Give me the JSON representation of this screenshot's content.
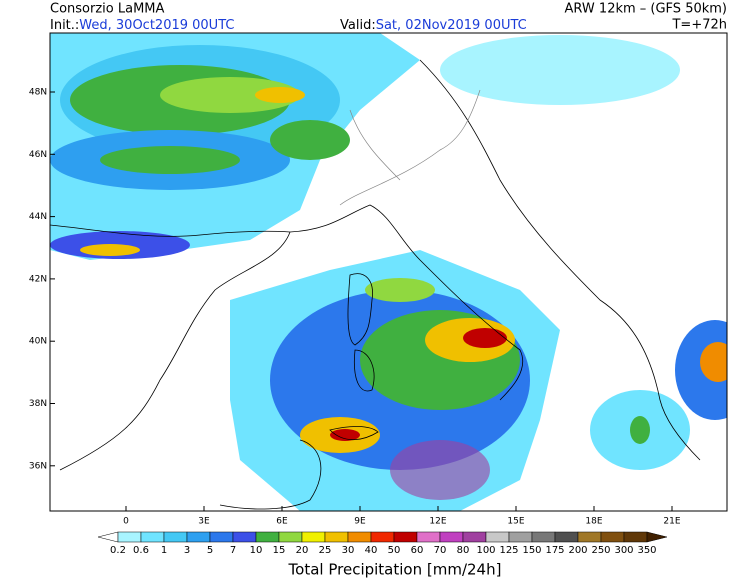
{
  "header": {
    "producer": "Consorzio LaMMA",
    "init_label": "Init.:",
    "init_value": "Wed, 30Oct2019 00UTC",
    "model": "ARW 12km  –  (GFS 50km)",
    "valid_label": "Valid:",
    "valid_value": "Sat, 02Nov2019 00UTC",
    "lead_time": "T=+72h"
  },
  "lat_labels": [
    "48N",
    "46N",
    "44N",
    "42N",
    "40N",
    "38N",
    "36N"
  ],
  "lon_labels": [
    "0",
    "3E",
    "6E",
    "9E",
    "12E",
    "15E",
    "18E",
    "21E"
  ],
  "colorbar": {
    "title": "Total Precipitation [mm/24h]",
    "levels": [
      0.2,
      0.6,
      1,
      3,
      5,
      7,
      10,
      15,
      20,
      25,
      30,
      40,
      50,
      60,
      70,
      80,
      100,
      125,
      150,
      175,
      200,
      250,
      300,
      350
    ],
    "colors": [
      "#ffffff",
      "#a8f4ff",
      "#70e4ff",
      "#44c8f4",
      "#2ea0f0",
      "#2c78ec",
      "#3c50e8",
      "#40b040",
      "#90d840",
      "#f0f000",
      "#f0c000",
      "#f08c00",
      "#f02800",
      "#c00000",
      "#e070c8",
      "#c040c0",
      "#a040a0",
      "#c8c8c8",
      "#a0a0a0",
      "#787878",
      "#505050",
      "#a07828",
      "#805010",
      "#603808",
      "#402000"
    ]
  }
}
